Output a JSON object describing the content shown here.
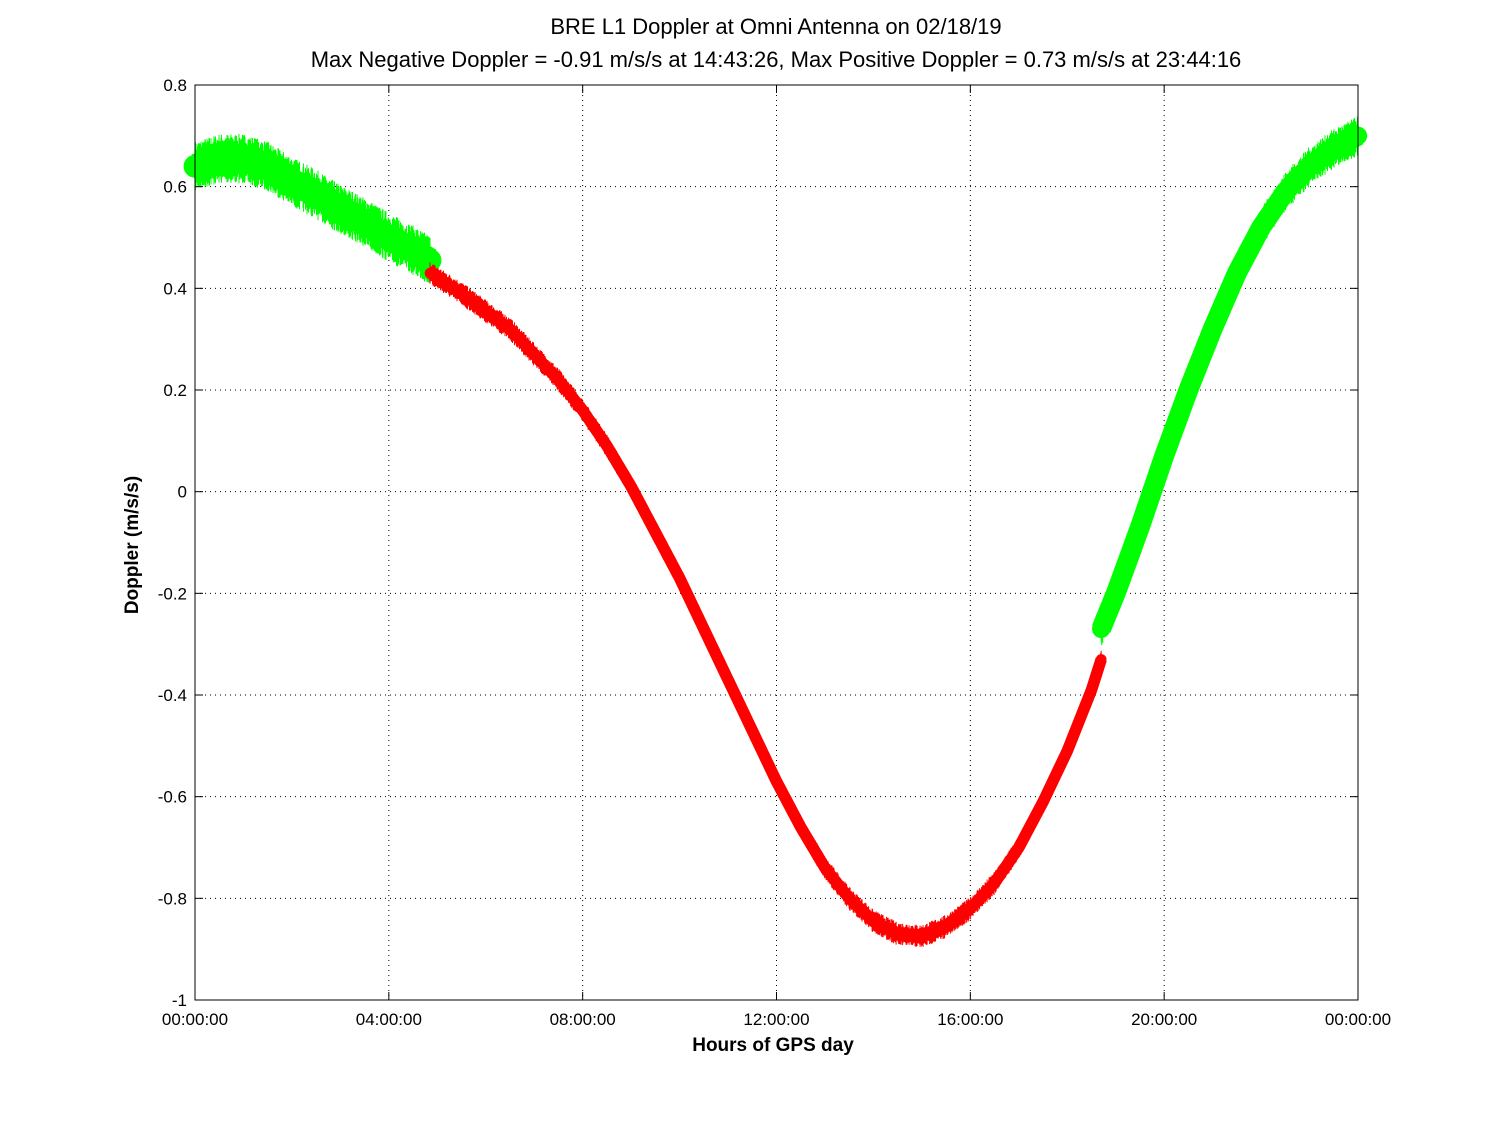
{
  "chart_data": {
    "type": "line",
    "title": "BRE  L1 Doppler at Omni Antenna on 02/18/19",
    "subtitle": "Max Negative Doppler = -0.91 m/s/s  at 14:43:26,   Max Positive Doppler = 0.73 m/s/s  at 23:44:16",
    "xlabel": "Hours of GPS day",
    "ylabel": "Doppler (m/s/s)",
    "xlim": [
      0,
      24
    ],
    "ylim": [
      -1,
      0.8
    ],
    "grid": true,
    "x_ticks": [
      {
        "value": 0,
        "label": "00:00:00"
      },
      {
        "value": 4,
        "label": "04:00:00"
      },
      {
        "value": 8,
        "label": "08:00:00"
      },
      {
        "value": 12,
        "label": "12:00:00"
      },
      {
        "value": 16,
        "label": "16:00:00"
      },
      {
        "value": 20,
        "label": "20:00:00"
      },
      {
        "value": 24,
        "label": "00:00:00"
      }
    ],
    "y_ticks": [
      {
        "value": 0.8,
        "label": "0.8"
      },
      {
        "value": 0.6,
        "label": "0.6"
      },
      {
        "value": 0.4,
        "label": "0.4"
      },
      {
        "value": 0.2,
        "label": "0.2"
      },
      {
        "value": 0,
        "label": "0"
      },
      {
        "value": -0.2,
        "label": "-0.2"
      },
      {
        "value": -0.4,
        "label": "-0.4"
      },
      {
        "value": -0.6,
        "label": "-0.6"
      },
      {
        "value": -0.8,
        "label": "-0.8"
      },
      {
        "value": -1,
        "label": "-1"
      }
    ],
    "series": [
      {
        "color": "#00ff00",
        "band_width": 0.075,
        "x": [
          0,
          0.5,
          1.0,
          1.5,
          2.0,
          2.5,
          3.0,
          3.5,
          4.0,
          4.5,
          4.85
        ],
        "y": [
          0.64,
          0.655,
          0.655,
          0.64,
          0.61,
          0.585,
          0.555,
          0.53,
          0.5,
          0.475,
          0.455
        ]
      },
      {
        "color": "#ff0000",
        "band_width": 0.035,
        "x": [
          4.85,
          5.5,
          6.0,
          6.5,
          7.0,
          7.5,
          8.0,
          8.5,
          9.0,
          9.5,
          10.0,
          10.5,
          11.0,
          11.5,
          12.0,
          12.5,
          13.0,
          13.5,
          14.0,
          14.5,
          15.0,
          15.5,
          16.0,
          16.5,
          17.0,
          17.5,
          18.0,
          18.5,
          18.7
        ],
        "y": [
          0.43,
          0.39,
          0.355,
          0.32,
          0.27,
          0.22,
          0.16,
          0.09,
          0.01,
          -0.08,
          -0.17,
          -0.27,
          -0.37,
          -0.47,
          -0.57,
          -0.66,
          -0.74,
          -0.8,
          -0.845,
          -0.87,
          -0.875,
          -0.855,
          -0.82,
          -0.77,
          -0.7,
          -0.61,
          -0.51,
          -0.39,
          -0.33
        ]
      },
      {
        "color": "#00ff00",
        "band_width": 0.06,
        "x": [
          18.7,
          19.0,
          19.5,
          20.0,
          20.5,
          21.0,
          21.5,
          22.0,
          22.5,
          23.0,
          23.5,
          24.0
        ],
        "y": [
          -0.27,
          -0.2,
          -0.07,
          0.07,
          0.2,
          0.32,
          0.43,
          0.52,
          0.59,
          0.64,
          0.675,
          0.7
        ]
      }
    ]
  }
}
